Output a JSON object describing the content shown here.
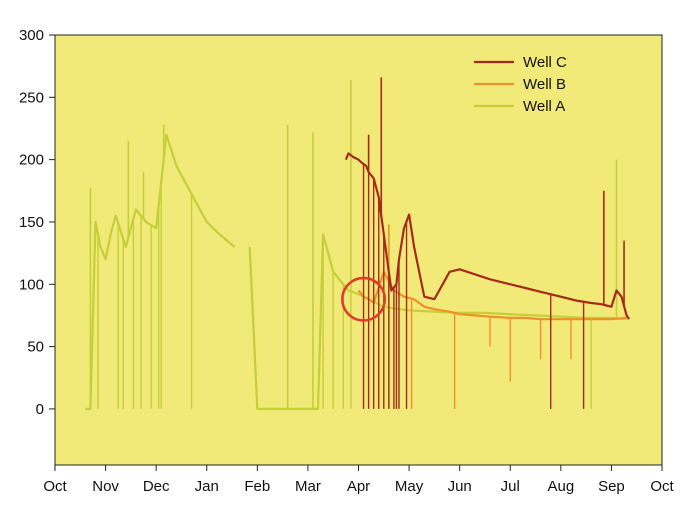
{
  "chart_data": {
    "type": "line",
    "title": "",
    "xlabel": "",
    "ylabel": "",
    "ylim": [
      -45,
      300
    ],
    "yticks": [
      0,
      50,
      100,
      150,
      200,
      250,
      300
    ],
    "yticklabels": [
      "0",
      "50",
      "100",
      "150",
      "200",
      "250",
      "300"
    ],
    "xlim": [
      0,
      12
    ],
    "xticks": [
      0,
      1,
      2,
      3,
      4,
      5,
      6,
      7,
      8,
      9,
      10,
      11,
      12
    ],
    "xticklabels": [
      "Oct",
      "Nov",
      "Dec",
      "Jan",
      "Feb",
      "Mar",
      "Apr",
      "May",
      "Jun",
      "Jul",
      "Aug",
      "Sep",
      "Oct"
    ],
    "x_unit": "months since start of October",
    "grid": false,
    "legend_position": "top-right",
    "colors": {
      "background": "#f2ea78",
      "well_a": "#c5cf3a",
      "well_b": "#f0902c",
      "well_c": "#a52a1c",
      "highlight_circle": "#e03a2a"
    },
    "series": [
      {
        "name": "Well C",
        "color": "#a52a1c",
        "x": [
          5.75,
          5.8,
          5.9,
          6.0,
          6.05,
          6.15,
          6.2,
          6.3,
          6.4,
          6.5,
          6.6,
          6.65,
          6.75,
          6.8,
          6.9,
          7.0,
          7.1,
          7.3,
          7.5,
          7.8,
          8.0,
          8.3,
          8.6,
          9.0,
          9.3,
          9.6,
          10.0,
          10.3,
          10.6,
          10.8,
          10.9,
          11.0,
          11.1,
          11.2,
          11.3,
          11.35
        ],
        "y": [
          200,
          205,
          202,
          200,
          198,
          195,
          190,
          185,
          170,
          140,
          110,
          95,
          100,
          120,
          145,
          156,
          130,
          90,
          88,
          110,
          112,
          108,
          104,
          100,
          97,
          94,
          90,
          87,
          85,
          84,
          83,
          82,
          95,
          90,
          75,
          72
        ],
        "spikes_up": [
          {
            "x": 6.45,
            "y": 266
          },
          {
            "x": 6.2,
            "y": 220
          },
          {
            "x": 10.85,
            "y": 175
          },
          {
            "x": 11.25,
            "y": 135
          }
        ],
        "drops_to_zero_x": [
          6.1,
          6.2,
          6.3,
          6.4,
          6.5,
          6.6,
          6.7,
          6.75,
          6.8,
          6.95,
          9.8,
          10.45
        ]
      },
      {
        "name": "Well B",
        "color": "#f0902c",
        "x": [
          6.0,
          6.1,
          6.2,
          6.3,
          6.5,
          6.7,
          6.9,
          7.1,
          7.3,
          7.5,
          7.8,
          8.0,
          8.3,
          8.6,
          9.0,
          9.3,
          9.6,
          10.0,
          10.3,
          10.6,
          11.0,
          11.3
        ],
        "y": [
          95,
          90,
          88,
          85,
          110,
          95,
          90,
          88,
          82,
          80,
          78,
          76,
          75,
          74,
          73,
          73,
          72,
          72,
          72,
          72,
          72,
          73
        ],
        "spikes_up": [
          {
            "x": 6.6,
            "y": 148
          }
        ],
        "drops_to_zero_x": [
          6.6,
          7.05,
          7.9
        ],
        "dips": [
          {
            "x": 8.6,
            "y": 50
          },
          {
            "x": 9.0,
            "y": 22
          },
          {
            "x": 9.6,
            "y": 40
          },
          {
            "x": 10.2,
            "y": 40
          }
        ]
      },
      {
        "name": "Well A",
        "color": "#c5cf3a",
        "x": [
          0.6,
          0.7,
          0.8,
          0.9,
          1.0,
          1.1,
          1.2,
          1.4,
          1.6,
          1.8,
          2.0,
          2.2,
          2.4,
          2.6,
          2.8,
          3.0,
          3.2,
          3.4,
          3.55,
          3.8,
          3.85,
          4.0,
          4.5,
          5.0,
          5.2,
          5.3,
          5.4,
          5.5,
          5.6,
          5.8,
          6.0,
          6.2,
          6.5,
          6.8,
          7.0,
          7.5,
          8.0,
          8.5,
          9.0,
          9.5,
          10.0,
          10.5,
          11.0,
          11.3
        ],
        "y": [
          0,
          0,
          150,
          130,
          120,
          140,
          155,
          130,
          160,
          150,
          145,
          220,
          195,
          180,
          165,
          150,
          142,
          135,
          130,
          null,
          130,
          0,
          0,
          0,
          0,
          140,
          125,
          110,
          105,
          95,
          92,
          88,
          82,
          80,
          79,
          78,
          77,
          77,
          76,
          75,
          74,
          73,
          73,
          72
        ],
        "spikes_up": [
          {
            "x": 0.7,
            "y": 177
          },
          {
            "x": 1.45,
            "y": 215
          },
          {
            "x": 1.75,
            "y": 190
          },
          {
            "x": 2.15,
            "y": 228
          },
          {
            "x": 4.6,
            "y": 228
          },
          {
            "x": 5.1,
            "y": 222
          },
          {
            "x": 5.85,
            "y": 264
          },
          {
            "x": 11.1,
            "y": 200
          }
        ],
        "drops_to_zero_x": [
          0.65,
          0.85,
          1.25,
          1.35,
          1.55,
          1.7,
          1.9,
          2.05,
          2.1,
          2.7,
          4.6,
          5.1,
          5.3,
          5.5,
          5.7,
          5.85,
          10.6
        ]
      }
    ],
    "annotations": [
      {
        "type": "circle",
        "x": 6.1,
        "y": 88,
        "x_radius": 0.42,
        "label": ""
      }
    ]
  }
}
